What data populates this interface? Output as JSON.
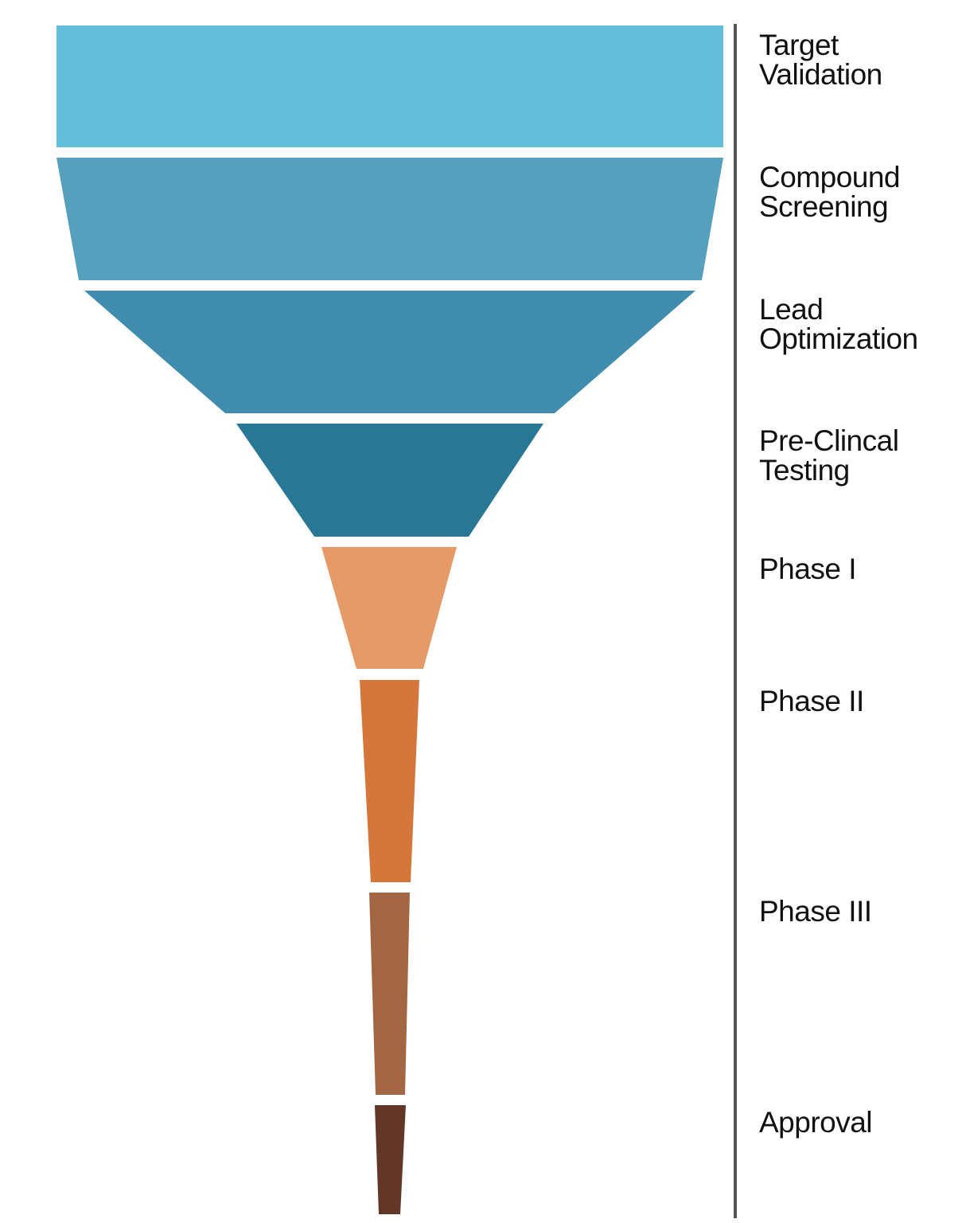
{
  "diagram": {
    "type": "funnel",
    "stages": [
      {
        "name": "target-validation",
        "lines": [
          "Target",
          "Validation"
        ],
        "color": "#62bdd8"
      },
      {
        "name": "compound-screening",
        "lines": [
          "Compound",
          "Screening"
        ],
        "color": "#569fbd"
      },
      {
        "name": "lead-optimization",
        "lines": [
          "Lead",
          "Optimization"
        ],
        "color": "#3f8cae"
      },
      {
        "name": "pre-clinical-testing",
        "lines": [
          "Pre-Clincal",
          "Testing"
        ],
        "color": "#287795"
      },
      {
        "name": "phase-i",
        "lines": [
          "Phase I"
        ],
        "color": "#e59a68"
      },
      {
        "name": "phase-ii",
        "lines": [
          "Phase II"
        ],
        "color": "#d5773a"
      },
      {
        "name": "phase-iii",
        "lines": [
          "Phase III"
        ],
        "color": "#a26642"
      },
      {
        "name": "approval",
        "lines": [
          "Approval"
        ],
        "color": "#633727"
      }
    ],
    "divider_color": "#555555"
  }
}
